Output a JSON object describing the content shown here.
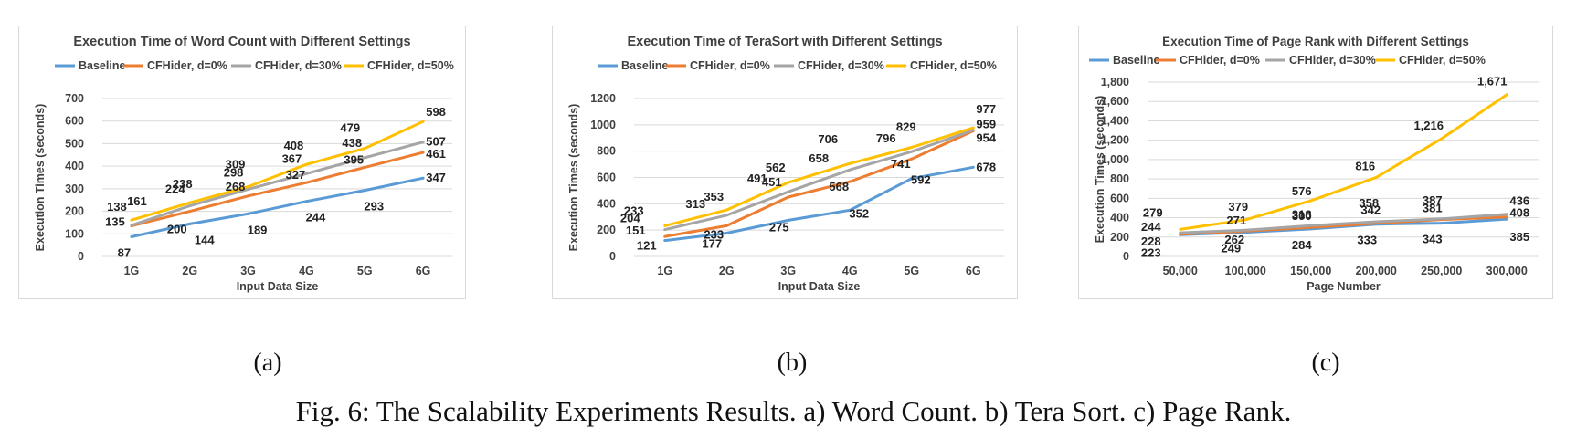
{
  "caption": "Fig. 6: The Scalability Experiments Results. a) Word Count. b) Tera Sort. c) Page Rank.",
  "colors": {
    "Baseline": "#5B9BD5",
    "CFHider, d=0%": "#ED7D31",
    "CFHider, d=30%": "#A5A5A5",
    "CFHider, d=50%": "#FFC000"
  },
  "chart_data": [
    {
      "panel_label": "(a)",
      "type": "line",
      "title": "Execution Time of Word Count with Different Settings",
      "xlabel": "Input Data Size",
      "ylabel": "Execution Times (seconds)",
      "categories": [
        "1G",
        "2G",
        "3G",
        "4G",
        "5G",
        "6G"
      ],
      "ylim": [
        0,
        700
      ],
      "yticks": [
        "0",
        "100",
        "200",
        "300",
        "400",
        "500",
        "600",
        "700"
      ],
      "grid": true,
      "legend": "top",
      "series": [
        {
          "name": "Baseline",
          "values": [
            87,
            144,
            189,
            244,
            293,
            347
          ]
        },
        {
          "name": "CFHider, d=0%",
          "values": [
            135,
            200,
            268,
            327,
            395,
            461
          ]
        },
        {
          "name": "CFHider, d=30%",
          "values": [
            138,
            224,
            298,
            367,
            438,
            507
          ]
        },
        {
          "name": "CFHider, d=50%",
          "values": [
            161,
            238,
            309,
            408,
            479,
            598
          ]
        }
      ]
    },
    {
      "panel_label": "(b)",
      "type": "line",
      "title": "Execution Time of TeraSort with Different Settings",
      "xlabel": "Input Data Size",
      "ylabel": "Execution Times (seconds)",
      "categories": [
        "1G",
        "2G",
        "3G",
        "4G",
        "5G",
        "6G"
      ],
      "ylim": [
        0,
        1200
      ],
      "yticks": [
        "0",
        "200",
        "400",
        "600",
        "800",
        "1000",
        "1200"
      ],
      "grid": true,
      "legend": "top",
      "series": [
        {
          "name": "Baseline",
          "values": [
            121,
            177,
            275,
            352,
            592,
            678
          ]
        },
        {
          "name": "CFHider, d=0%",
          "values": [
            151,
            233,
            451,
            568,
            741,
            954
          ]
        },
        {
          "name": "CFHider, d=30%",
          "values": [
            204,
            313,
            491,
            658,
            796,
            959
          ]
        },
        {
          "name": "CFHider, d=50%",
          "values": [
            233,
            353,
            562,
            706,
            829,
            977
          ]
        }
      ]
    },
    {
      "panel_label": "(c)",
      "type": "line",
      "title": "Execution Time of Page Rank with Different Settings",
      "xlabel": "Page Number",
      "ylabel": "Execution Times (seconds)",
      "categories": [
        "50,000",
        "100,000",
        "150,000",
        "200,000",
        "250,000",
        "300,000"
      ],
      "ylim": [
        0,
        1800
      ],
      "yticks": [
        "0",
        "200",
        "400",
        "600",
        "800",
        "1,000",
        "1,200",
        "1,400",
        "1,600",
        "1,800"
      ],
      "grid": true,
      "legend": "top",
      "series": [
        {
          "name": "Baseline",
          "values": [
            223,
            249,
            284,
            333,
            343,
            385
          ],
          "labels": [
            "223",
            "249",
            "284",
            "333",
            "343",
            "385"
          ]
        },
        {
          "name": "CFHider, d=0%",
          "values": [
            228,
            262,
            300,
            342,
            381,
            408
          ],
          "labels": [
            "228",
            "262",
            "300",
            "342",
            "381",
            "408"
          ]
        },
        {
          "name": "CFHider, d=30%",
          "values": [
            244,
            271,
            318,
            358,
            387,
            436
          ],
          "labels": [
            "244",
            "271",
            "318",
            "358",
            "387",
            "436"
          ]
        },
        {
          "name": "CFHider, d=50%",
          "values": [
            279,
            379,
            576,
            816,
            1216,
            1671
          ],
          "labels": [
            "279",
            "379",
            "576",
            "816",
            "1,216",
            "1,671"
          ]
        }
      ]
    }
  ]
}
